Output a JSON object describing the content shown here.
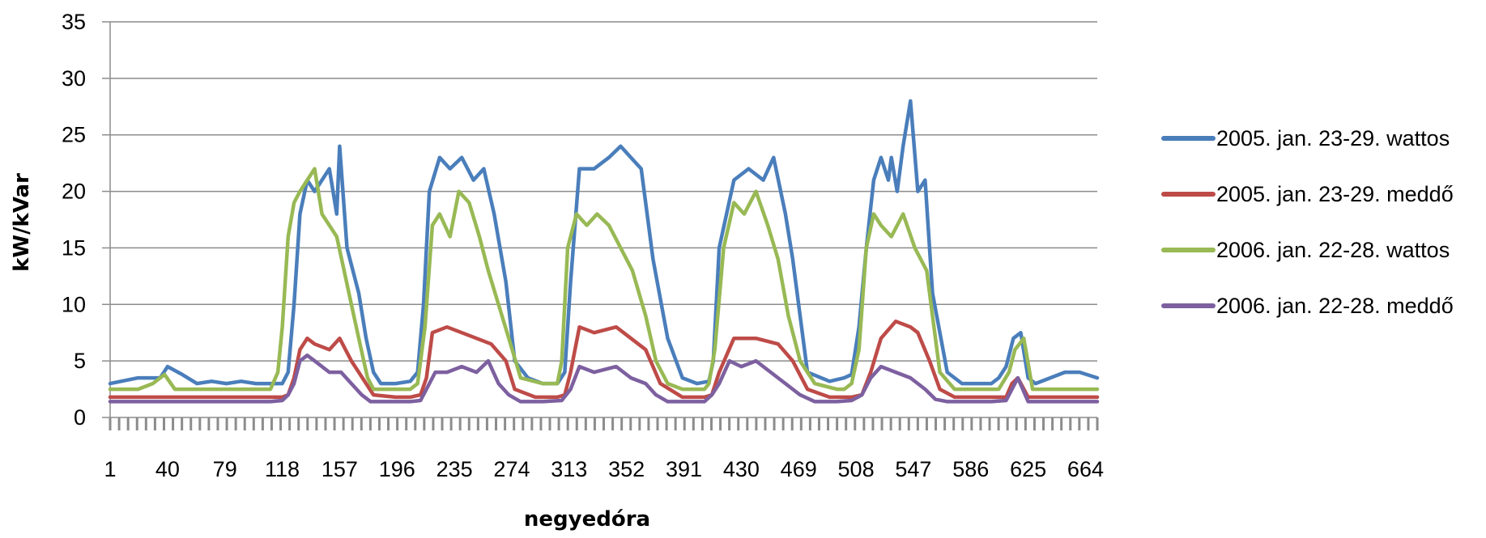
{
  "chart_data": {
    "type": "line",
    "title": "",
    "xlabel": "negyedóra",
    "ylabel": "kW/kVar",
    "xlim": [
      1,
      672
    ],
    "ylim": [
      0,
      35
    ],
    "y_ticks": [
      "0",
      "5",
      "10",
      "15",
      "20",
      "25",
      "30",
      "35"
    ],
    "x_tick_labels": [
      "1",
      "40",
      "79",
      "118",
      "157",
      "196",
      "235",
      "274",
      "313",
      "352",
      "391",
      "430",
      "469",
      "508",
      "547",
      "586",
      "625",
      "664"
    ],
    "grid": "horizontal",
    "legend_position": "right",
    "series": [
      {
        "name": "2005. jan. 23-29. wattos",
        "color": "#4a7ebb",
        "x": [
          1,
          20,
          35,
          40,
          50,
          60,
          70,
          80,
          90,
          100,
          110,
          118,
          122,
          126,
          130,
          135,
          140,
          145,
          150,
          155,
          157,
          162,
          170,
          175,
          180,
          185,
          195,
          205,
          210,
          214,
          218,
          225,
          232,
          240,
          248,
          255,
          262,
          270,
          276,
          285,
          295,
          305,
          310,
          314,
          320,
          330,
          340,
          348,
          355,
          362,
          370,
          380,
          390,
          400,
          408,
          411,
          415,
          425,
          435,
          445,
          452,
          460,
          465,
          475,
          490,
          500,
          505,
          510,
          515,
          520,
          525,
          530,
          532,
          536,
          540,
          545,
          550,
          555,
          560,
          570,
          580,
          590,
          600,
          605,
          610,
          615,
          620,
          625,
          630,
          640,
          650,
          660,
          672
        ],
        "values": [
          3,
          3.5,
          3.5,
          4.5,
          3.8,
          3,
          3.2,
          3,
          3.2,
          3,
          3,
          3,
          4,
          10,
          18,
          21,
          20,
          21,
          22,
          18,
          24,
          15,
          11,
          7,
          4,
          3,
          3,
          3.2,
          4,
          10,
          20,
          23,
          22,
          23,
          21,
          22,
          18,
          12,
          5,
          3.5,
          3,
          3,
          4,
          12,
          22,
          22,
          23,
          24,
          23,
          22,
          14,
          7,
          3.5,
          3,
          3.2,
          5,
          15,
          21,
          22,
          21,
          23,
          18,
          14,
          4,
          3.2,
          3.5,
          3.8,
          8,
          15,
          21,
          23,
          21,
          23,
          20,
          24,
          28,
          20,
          21,
          11,
          4,
          3,
          3,
          3,
          3.5,
          4.5,
          7,
          7.5,
          3.5,
          3,
          3.5,
          4,
          4,
          3.5
        ]
      },
      {
        "name": "2005. jan. 23-29. meddő",
        "color": "#be4b48",
        "x": [
          1,
          30,
          60,
          90,
          118,
          122,
          126,
          130,
          135,
          140,
          150,
          157,
          165,
          175,
          180,
          195,
          205,
          212,
          216,
          220,
          230,
          240,
          250,
          260,
          270,
          276,
          290,
          305,
          310,
          314,
          320,
          330,
          345,
          355,
          365,
          375,
          390,
          405,
          410,
          415,
          425,
          440,
          455,
          465,
          475,
          490,
          505,
          512,
          518,
          525,
          535,
          545,
          550,
          558,
          565,
          575,
          590,
          600,
          610,
          614,
          618,
          625,
          640,
          660,
          672
        ],
        "values": [
          1.8,
          1.8,
          1.8,
          1.8,
          1.8,
          2,
          3.5,
          6,
          7,
          6.5,
          6,
          7,
          5,
          3,
          2,
          1.8,
          1.8,
          2,
          3.5,
          7.5,
          8,
          7.5,
          7,
          6.5,
          5,
          2.5,
          1.8,
          1.8,
          2,
          4,
          8,
          7.5,
          8,
          7,
          6,
          3,
          1.8,
          1.8,
          2,
          4,
          7,
          7,
          6.5,
          5,
          2.5,
          1.8,
          1.8,
          2,
          4,
          7,
          8.5,
          8,
          7.5,
          5,
          2.5,
          1.8,
          1.8,
          1.8,
          1.8,
          3,
          3.5,
          1.8,
          1.8,
          1.8,
          1.8
        ]
      },
      {
        "name": "2006. jan. 22-28. wattos",
        "color": "#98b954",
        "x": [
          1,
          20,
          30,
          38,
          45,
          55,
          70,
          90,
          110,
          115,
          118,
          122,
          126,
          130,
          135,
          140,
          145,
          150,
          155,
          160,
          165,
          170,
          176,
          180,
          190,
          205,
          210,
          215,
          220,
          225,
          232,
          238,
          245,
          252,
          258,
          265,
          272,
          280,
          295,
          305,
          308,
          312,
          318,
          325,
          332,
          340,
          348,
          356,
          365,
          372,
          380,
          390,
          405,
          408,
          412,
          418,
          425,
          432,
          440,
          448,
          455,
          462,
          470,
          480,
          495,
          500,
          505,
          510,
          515,
          520,
          525,
          532,
          540,
          548,
          556,
          560,
          565,
          575,
          590,
          605,
          612,
          616,
          622,
          628,
          640,
          660,
          672
        ],
        "values": [
          2.5,
          2.5,
          3,
          3.8,
          2.5,
          2.5,
          2.5,
          2.5,
          2.5,
          4,
          8,
          16,
          19,
          20,
          21,
          22,
          18,
          17,
          16,
          13,
          10,
          7,
          3.5,
          2.5,
          2.5,
          2.5,
          3,
          8,
          17,
          18,
          16,
          20,
          19,
          16,
          13,
          10,
          7,
          3.5,
          3,
          3,
          5,
          15,
          18,
          17,
          18,
          17,
          15,
          13,
          9,
          5,
          3,
          2.5,
          2.5,
          3,
          6,
          15,
          19,
          18,
          20,
          17,
          14,
          9,
          5,
          3,
          2.5,
          2.5,
          3,
          6,
          15,
          18,
          17,
          16,
          18,
          15,
          13,
          9,
          4,
          2.5,
          2.5,
          2.5,
          4,
          6,
          7,
          2.5,
          2.5,
          2.5,
          2.5
        ]
      },
      {
        "name": "2006. jan. 22-28. meddő",
        "color": "#7d60a0",
        "x": [
          1,
          30,
          60,
          90,
          110,
          118,
          122,
          126,
          130,
          135,
          140,
          150,
          158,
          165,
          172,
          178,
          190,
          205,
          212,
          216,
          222,
          230,
          240,
          250,
          258,
          265,
          272,
          280,
          295,
          308,
          314,
          320,
          330,
          345,
          355,
          365,
          372,
          380,
          395,
          405,
          410,
          415,
          422,
          430,
          440,
          450,
          460,
          470,
          480,
          495,
          505,
          512,
          518,
          525,
          535,
          545,
          555,
          562,
          570,
          585,
          600,
          610,
          614,
          618,
          625,
          640,
          660,
          672
        ],
        "values": [
          1.4,
          1.4,
          1.4,
          1.4,
          1.4,
          1.5,
          2,
          3,
          5,
          5.5,
          5,
          4,
          4,
          3,
          2,
          1.4,
          1.4,
          1.4,
          1.5,
          2.5,
          4,
          4,
          4.5,
          4,
          5,
          3,
          2,
          1.4,
          1.4,
          1.5,
          2.5,
          4.5,
          4,
          4.5,
          3.5,
          3,
          2,
          1.4,
          1.4,
          1.4,
          2,
          3,
          5,
          4.5,
          5,
          4,
          3,
          2,
          1.4,
          1.4,
          1.5,
          2,
          3.5,
          4.5,
          4,
          3.5,
          2.5,
          1.6,
          1.4,
          1.4,
          1.4,
          1.5,
          2.5,
          3.5,
          1.4,
          1.4,
          1.4,
          1.4
        ]
      }
    ]
  }
}
